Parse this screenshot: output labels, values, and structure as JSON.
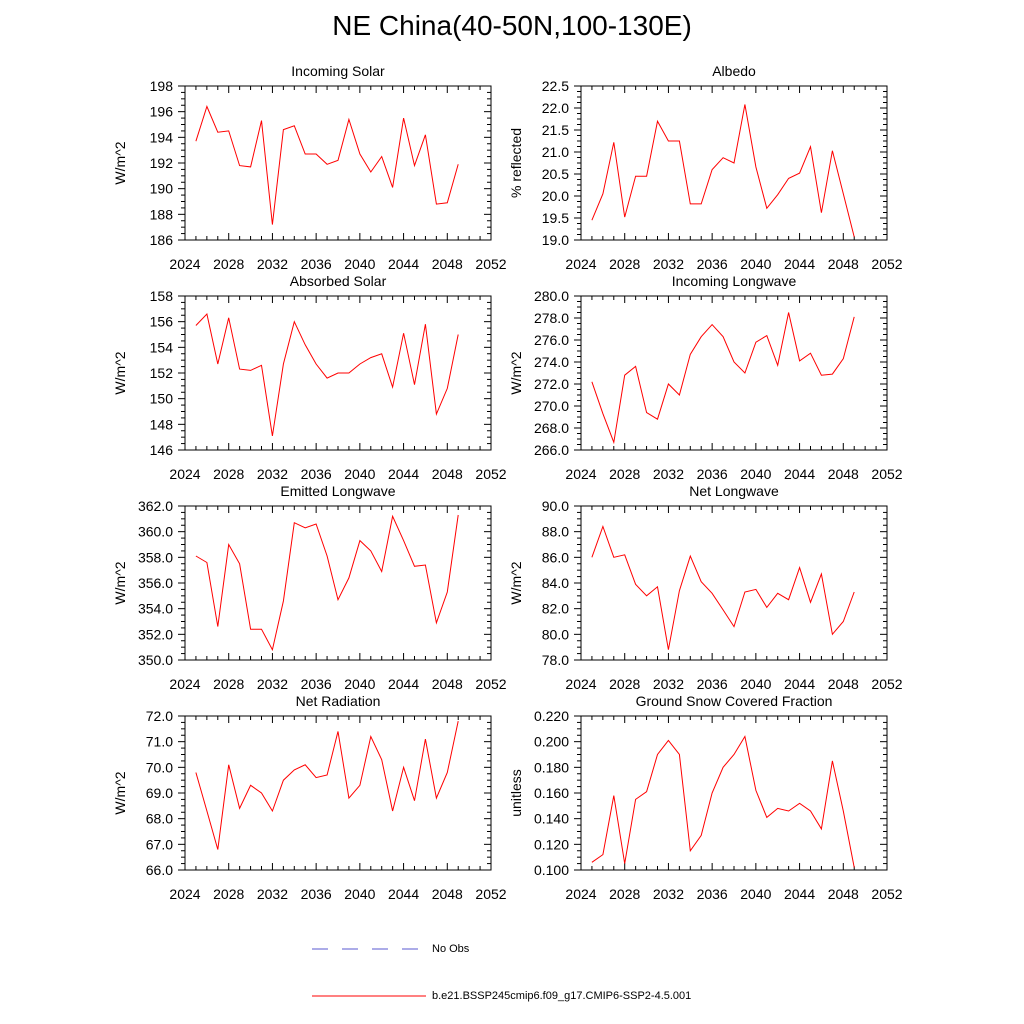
{
  "title": "NE China(40-50N,100-130E)",
  "colors": {
    "series": "#ff0000",
    "obs": "#5a5ad0",
    "axis": "#000000"
  },
  "legend": {
    "obs_label": "No Obs",
    "case_label": "b.e21.BSSP245cmip6.f09_g17.CMIP6-SSP2-4.5.001"
  },
  "chart_data": [
    {
      "type": "line",
      "title": "Incoming Solar",
      "ylabel": "W/m^2",
      "xlim": [
        2024,
        2052
      ],
      "ylim": [
        186,
        198
      ],
      "xticks": [
        2024,
        2028,
        2032,
        2036,
        2040,
        2044,
        2048,
        2052
      ],
      "yticks": [
        186,
        188,
        190,
        192,
        194,
        196,
        198
      ],
      "ytick_decimals": 0,
      "x": [
        2025,
        2026,
        2027,
        2028,
        2029,
        2030,
        2031,
        2032,
        2033,
        2034,
        2035,
        2036,
        2037,
        2038,
        2039,
        2040,
        2041,
        2042,
        2043,
        2044,
        2045,
        2046,
        2047,
        2048,
        2049
      ],
      "y": [
        193.7,
        196.4,
        194.4,
        194.5,
        191.8,
        191.7,
        195.3,
        187.2,
        194.6,
        194.9,
        192.7,
        192.7,
        191.9,
        192.2,
        195.4,
        192.7,
        191.3,
        192.5,
        190.1,
        195.5,
        191.8,
        194.2,
        188.8,
        188.9,
        191.9
      ]
    },
    {
      "type": "line",
      "title": "Albedo",
      "ylabel": "% reflected",
      "xlim": [
        2024,
        2052
      ],
      "ylim": [
        19.0,
        22.5
      ],
      "xticks": [
        2024,
        2028,
        2032,
        2036,
        2040,
        2044,
        2048,
        2052
      ],
      "yticks": [
        19.0,
        19.5,
        20.0,
        20.5,
        21.0,
        21.5,
        22.0,
        22.5
      ],
      "ytick_decimals": 1,
      "x": [
        2025,
        2026,
        2027,
        2028,
        2029,
        2030,
        2031,
        2032,
        2033,
        2034,
        2035,
        2036,
        2037,
        2038,
        2039,
        2040,
        2041,
        2042,
        2043,
        2044,
        2045,
        2046,
        2047,
        2048,
        2049
      ],
      "y": [
        19.45,
        20.05,
        21.22,
        19.52,
        20.45,
        20.45,
        21.7,
        21.25,
        21.25,
        19.82,
        19.82,
        20.6,
        20.87,
        20.75,
        22.08,
        20.66,
        19.72,
        20.03,
        20.4,
        20.52,
        21.12,
        19.62,
        21.03,
        20.05,
        19.07
      ]
    },
    {
      "type": "line",
      "title": "Absorbed Solar",
      "ylabel": "W/m^2",
      "xlim": [
        2024,
        2052
      ],
      "ylim": [
        146,
        158
      ],
      "xticks": [
        2024,
        2028,
        2032,
        2036,
        2040,
        2044,
        2048,
        2052
      ],
      "yticks": [
        146,
        148,
        150,
        152,
        154,
        156,
        158
      ],
      "ytick_decimals": 0,
      "x": [
        2025,
        2026,
        2027,
        2028,
        2029,
        2030,
        2031,
        2032,
        2033,
        2034,
        2035,
        2036,
        2037,
        2038,
        2039,
        2040,
        2041,
        2042,
        2043,
        2044,
        2045,
        2046,
        2047,
        2048,
        2049
      ],
      "y": [
        155.7,
        156.6,
        152.7,
        156.3,
        152.3,
        152.2,
        152.6,
        147.1,
        152.7,
        156.0,
        154.2,
        152.7,
        151.6,
        152.0,
        152.0,
        152.7,
        153.2,
        153.5,
        150.9,
        155.1,
        151.1,
        155.8,
        148.8,
        150.8,
        155.0
      ]
    },
    {
      "type": "line",
      "title": "Incoming Longwave",
      "ylabel": "W/m^2",
      "xlim": [
        2024,
        2052
      ],
      "ylim": [
        266.0,
        280.0
      ],
      "xticks": [
        2024,
        2028,
        2032,
        2036,
        2040,
        2044,
        2048,
        2052
      ],
      "yticks": [
        266.0,
        268.0,
        270.0,
        272.0,
        274.0,
        276.0,
        278.0,
        280.0
      ],
      "ytick_decimals": 1,
      "x": [
        2025,
        2026,
        2027,
        2028,
        2029,
        2030,
        2031,
        2032,
        2033,
        2034,
        2035,
        2036,
        2037,
        2038,
        2039,
        2040,
        2041,
        2042,
        2043,
        2044,
        2045,
        2046,
        2047,
        2048,
        2049
      ],
      "y": [
        272.2,
        269.3,
        266.7,
        272.8,
        273.6,
        269.4,
        268.8,
        272.0,
        271.0,
        274.7,
        276.3,
        277.4,
        276.3,
        274.0,
        273.0,
        275.8,
        276.4,
        273.7,
        278.5,
        274.1,
        274.8,
        272.8,
        272.9,
        274.3,
        278.1
      ]
    },
    {
      "type": "line",
      "title": "Emitted Longwave",
      "ylabel": "W/m^2",
      "xlim": [
        2024,
        2052
      ],
      "ylim": [
        350.0,
        362.0
      ],
      "xticks": [
        2024,
        2028,
        2032,
        2036,
        2040,
        2044,
        2048,
        2052
      ],
      "yticks": [
        350.0,
        352.0,
        354.0,
        356.0,
        358.0,
        360.0,
        362.0
      ],
      "ytick_decimals": 1,
      "x": [
        2025,
        2026,
        2027,
        2028,
        2029,
        2030,
        2031,
        2032,
        2033,
        2034,
        2035,
        2036,
        2037,
        2038,
        2039,
        2040,
        2041,
        2042,
        2043,
        2044,
        2045,
        2046,
        2047,
        2048,
        2049
      ],
      "y": [
        358.1,
        357.6,
        352.6,
        359.0,
        357.5,
        352.4,
        352.4,
        350.8,
        354.6,
        360.7,
        360.3,
        360.6,
        358.1,
        354.7,
        356.4,
        359.3,
        358.5,
        356.9,
        361.2,
        359.3,
        357.3,
        357.4,
        352.9,
        355.3,
        361.3
      ]
    },
    {
      "type": "line",
      "title": "Net Longwave",
      "ylabel": "W/m^2",
      "xlim": [
        2024,
        2052
      ],
      "ylim": [
        78.0,
        90.0
      ],
      "xticks": [
        2024,
        2028,
        2032,
        2036,
        2040,
        2044,
        2048,
        2052
      ],
      "yticks": [
        78.0,
        80.0,
        82.0,
        84.0,
        86.0,
        88.0,
        90.0
      ],
      "ytick_decimals": 1,
      "x": [
        2025,
        2026,
        2027,
        2028,
        2029,
        2030,
        2031,
        2032,
        2033,
        2034,
        2035,
        2036,
        2037,
        2038,
        2039,
        2040,
        2041,
        2042,
        2043,
        2044,
        2045,
        2046,
        2047,
        2048,
        2049
      ],
      "y": [
        86.0,
        88.4,
        86.0,
        86.2,
        83.9,
        83.0,
        83.7,
        78.8,
        83.4,
        86.1,
        84.1,
        83.2,
        81.9,
        80.6,
        83.3,
        83.5,
        82.1,
        83.2,
        82.7,
        85.2,
        82.5,
        84.7,
        80.0,
        81.0,
        83.3
      ]
    },
    {
      "type": "line",
      "title": "Net Radiation",
      "ylabel": "W/m^2",
      "xlim": [
        2024,
        2052
      ],
      "ylim": [
        66.0,
        72.0
      ],
      "xticks": [
        2024,
        2028,
        2032,
        2036,
        2040,
        2044,
        2048,
        2052
      ],
      "yticks": [
        66.0,
        67.0,
        68.0,
        69.0,
        70.0,
        71.0,
        72.0
      ],
      "ytick_decimals": 1,
      "x": [
        2025,
        2026,
        2027,
        2028,
        2029,
        2030,
        2031,
        2032,
        2033,
        2034,
        2035,
        2036,
        2037,
        2038,
        2039,
        2040,
        2041,
        2042,
        2043,
        2044,
        2045,
        2046,
        2047,
        2048,
        2049
      ],
      "y": [
        69.8,
        68.3,
        66.8,
        70.1,
        68.4,
        69.3,
        69.0,
        68.3,
        69.5,
        69.9,
        70.1,
        69.6,
        69.7,
        71.4,
        68.8,
        69.3,
        71.2,
        70.3,
        68.3,
        70.0,
        68.7,
        71.1,
        68.8,
        69.8,
        71.8
      ]
    },
    {
      "type": "line",
      "title": "Ground Snow Covered Fraction",
      "ylabel": "unitless",
      "xlim": [
        2024,
        2052
      ],
      "ylim": [
        0.1,
        0.22
      ],
      "xticks": [
        2024,
        2028,
        2032,
        2036,
        2040,
        2044,
        2048,
        2052
      ],
      "yticks": [
        0.1,
        0.12,
        0.14,
        0.16,
        0.18,
        0.2,
        0.22
      ],
      "ytick_decimals": 3,
      "x": [
        2025,
        2026,
        2027,
        2028,
        2029,
        2030,
        2031,
        2032,
        2033,
        2034,
        2035,
        2036,
        2037,
        2038,
        2039,
        2040,
        2041,
        2042,
        2043,
        2044,
        2045,
        2046,
        2047,
        2048,
        2049
      ],
      "y": [
        0.106,
        0.112,
        0.158,
        0.105,
        0.155,
        0.161,
        0.19,
        0.201,
        0.19,
        0.115,
        0.127,
        0.16,
        0.18,
        0.19,
        0.204,
        0.162,
        0.141,
        0.148,
        0.146,
        0.152,
        0.146,
        0.132,
        0.185,
        0.146,
        0.102
      ]
    }
  ]
}
